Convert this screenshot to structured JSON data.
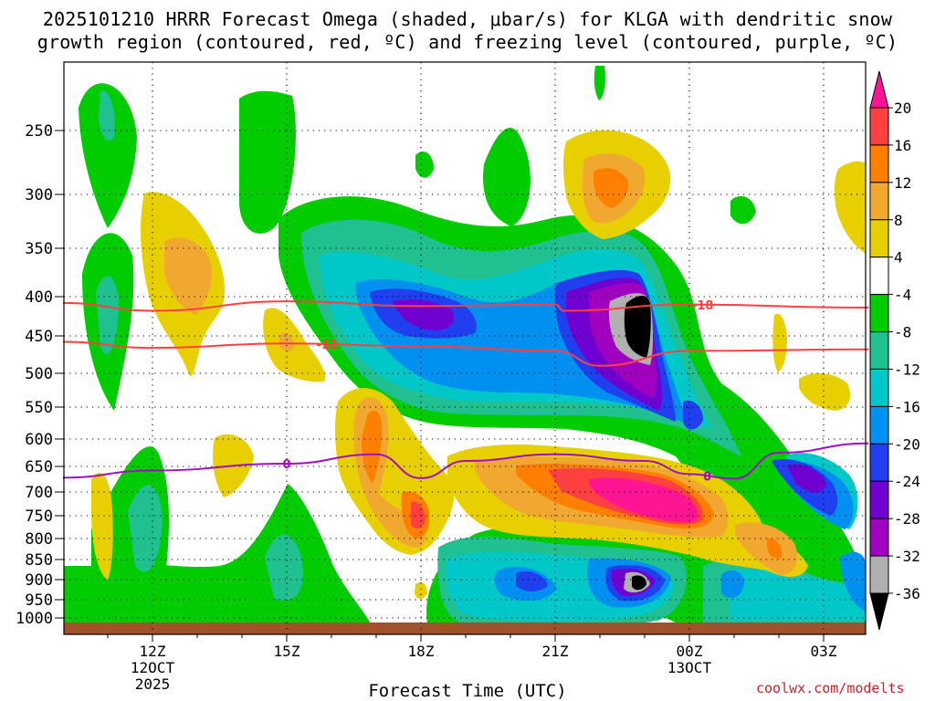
{
  "title_line1": "2025101210 HRRR Forecast Omega (shaded, μbar/s) for KLGA with dendritic snow",
  "title_line2": "growth region (contoured, red, ºC) and freezing level (contoured, purple, ºC)",
  "credit": "coolwx.com/modelts",
  "chart_data": {
    "type": "heatmap",
    "xlabel": "Forecast Time (UTC)",
    "ylabel": "",
    "x_ticks": [
      {
        "label": "12Z",
        "sub": [
          "12OCT",
          "2025"
        ]
      },
      {
        "label": "15Z",
        "sub": []
      },
      {
        "label": "18Z",
        "sub": []
      },
      {
        "label": "21Z",
        "sub": []
      },
      {
        "label": "00Z",
        "sub": [
          "13OCT"
        ]
      },
      {
        "label": "03Z",
        "sub": []
      }
    ],
    "x_hours": [
      12,
      15,
      18,
      21,
      24,
      27
    ],
    "x_range_hours": [
      10,
      28
    ],
    "y_ticks": [
      250,
      300,
      350,
      400,
      450,
      500,
      550,
      600,
      650,
      700,
      750,
      800,
      850,
      900,
      950,
      1000
    ],
    "y_range_hpa": [
      200,
      1010
    ],
    "grid": true,
    "colorbar": {
      "labels": [
        "20",
        "16",
        "12",
        "8",
        "4",
        "-4",
        "-8",
        "-12",
        "-16",
        "-20",
        "-24",
        "-28",
        "-32",
        "-36"
      ],
      "colors": [
        "#ff1493",
        "#ff4040",
        "#ff7f00",
        "#f0a830",
        "#e8d000",
        "#ffffff",
        "#00cc00",
        "#20c090",
        "#00c8c8",
        "#0090f0",
        "#2040f0",
        "#7000d0",
        "#a000c0",
        "#b0b0b0",
        "#000000"
      ]
    },
    "contours": [
      {
        "name": "-18",
        "color": "#ff4040",
        "points": [
          [
            10,
            408
          ],
          [
            12,
            418
          ],
          [
            15,
            406
          ],
          [
            18,
            412
          ],
          [
            21,
            410
          ],
          [
            21.2,
            418
          ],
          [
            24,
            410
          ],
          [
            28,
            414
          ]
        ]
      },
      {
        "name": "-12",
        "color": "#ff4040",
        "points": [
          [
            10,
            458
          ],
          [
            12,
            466
          ],
          [
            15,
            460
          ],
          [
            18,
            464
          ],
          [
            21,
            470
          ],
          [
            22,
            490
          ],
          [
            24,
            470
          ],
          [
            28,
            468
          ]
        ]
      },
      {
        "name": "0",
        "color": "#a010c0",
        "points": [
          [
            10,
            672
          ],
          [
            12,
            658
          ],
          [
            15,
            645
          ],
          [
            17,
            628
          ],
          [
            18,
            673
          ],
          [
            19,
            640
          ],
          [
            21,
            628
          ],
          [
            23,
            640
          ],
          [
            24,
            665
          ],
          [
            25,
            674
          ],
          [
            26,
            625
          ],
          [
            28,
            608
          ]
        ]
      }
    ]
  }
}
